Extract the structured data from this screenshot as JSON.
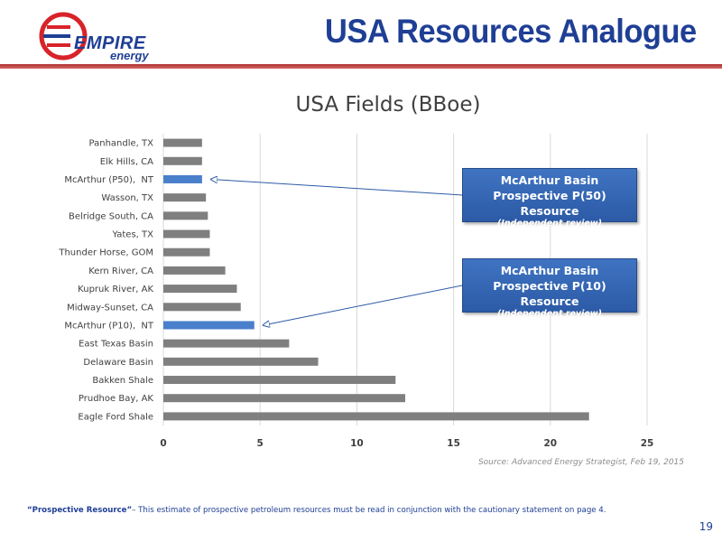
{
  "header": {
    "logo_word": "EMPIRE",
    "logo_sub": "energy",
    "title": "USA Resources Analogue"
  },
  "colors": {
    "brand_blue": "#1f3f95",
    "bar_gray": "#7f7f7f",
    "bar_highlight": "#4a7fcb",
    "rule_red": "#b03030",
    "logo_red": "#d8232a"
  },
  "chart_data": {
    "type": "bar",
    "orientation": "horizontal",
    "title": "USA Fields (BBoe)",
    "categories": [
      "Panhandle, TX",
      "Elk Hills, CA",
      "McArthur (P50),  NT",
      "Wasson, TX",
      "Belridge South, CA",
      "Yates, TX",
      "Thunder Horse, GOM",
      "Kern River, CA",
      "Kupruk River, AK",
      "Midway-Sunset, CA",
      "McArthur (P10),  NT",
      "East Texas Basin",
      "Delaware Basin",
      "Bakken Shale",
      "Prudhoe Bay, AK",
      "Eagle Ford Shale"
    ],
    "values": [
      2.0,
      2.0,
      2.0,
      2.2,
      2.3,
      2.4,
      2.4,
      3.2,
      3.8,
      4.0,
      4.7,
      6.5,
      8.0,
      12.0,
      12.5,
      22.0
    ],
    "highlighted": [
      "McArthur (P50),  NT",
      "McArthur (P10),  NT"
    ],
    "xlim": [
      0,
      25
    ],
    "xticks": [
      0,
      5,
      10,
      15,
      20,
      25
    ],
    "grid": true
  },
  "callouts": [
    {
      "line1": "McArthur Basin",
      "line2": "Prospective P(50) Resource",
      "line3": "(Independent review)",
      "target": "McArthur (P50),  NT"
    },
    {
      "line1": "McArthur Basin",
      "line2": "Prospective P(10) Resource",
      "line3": "(Independent review)",
      "target": "McArthur (P10),  NT"
    }
  ],
  "source": "Source: Advanced Energy Strategist, Feb 19, 2015",
  "footnote": {
    "bold": "“Prospective Resource”",
    "text": "– This estimate of prospective petroleum resources must be read in conjunction with the cautionary statement on page 4."
  },
  "page_number": "19"
}
